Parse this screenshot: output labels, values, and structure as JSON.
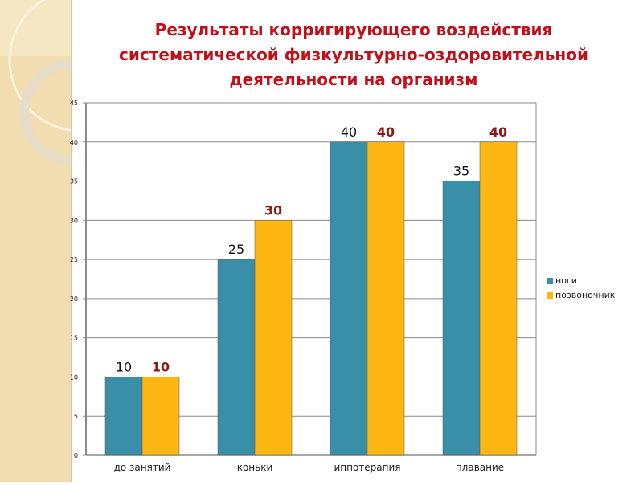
{
  "title_lines": [
    "Результаты корригирующего воздействия",
    "систематической физкультурно-оздоровительной",
    "деятельности на организм"
  ],
  "chart_data": {
    "type": "bar",
    "title": "Результаты корригирующего воздействия систематической физкультурно-оздоровительной деятельности на организм",
    "categories": [
      "до занятий",
      "коньки",
      "иппотерапия",
      "плавание"
    ],
    "series": [
      {
        "name": "ноги",
        "values": [
          10,
          25,
          40,
          35
        ],
        "color": "#3a8fa8",
        "label_color": "#111111"
      },
      {
        "name": "позвоночник",
        "values": [
          10,
          30,
          40,
          40
        ],
        "color": "#fdb612",
        "label_color": "#8b1a1a"
      }
    ],
    "ylim": [
      0,
      45
    ],
    "yticks": [
      "0",
      "5",
      "10",
      "15",
      "20",
      "25",
      "30",
      "35",
      "40",
      "45"
    ],
    "grid": true,
    "legend_position": "right",
    "xlabel": "",
    "ylabel": ""
  }
}
